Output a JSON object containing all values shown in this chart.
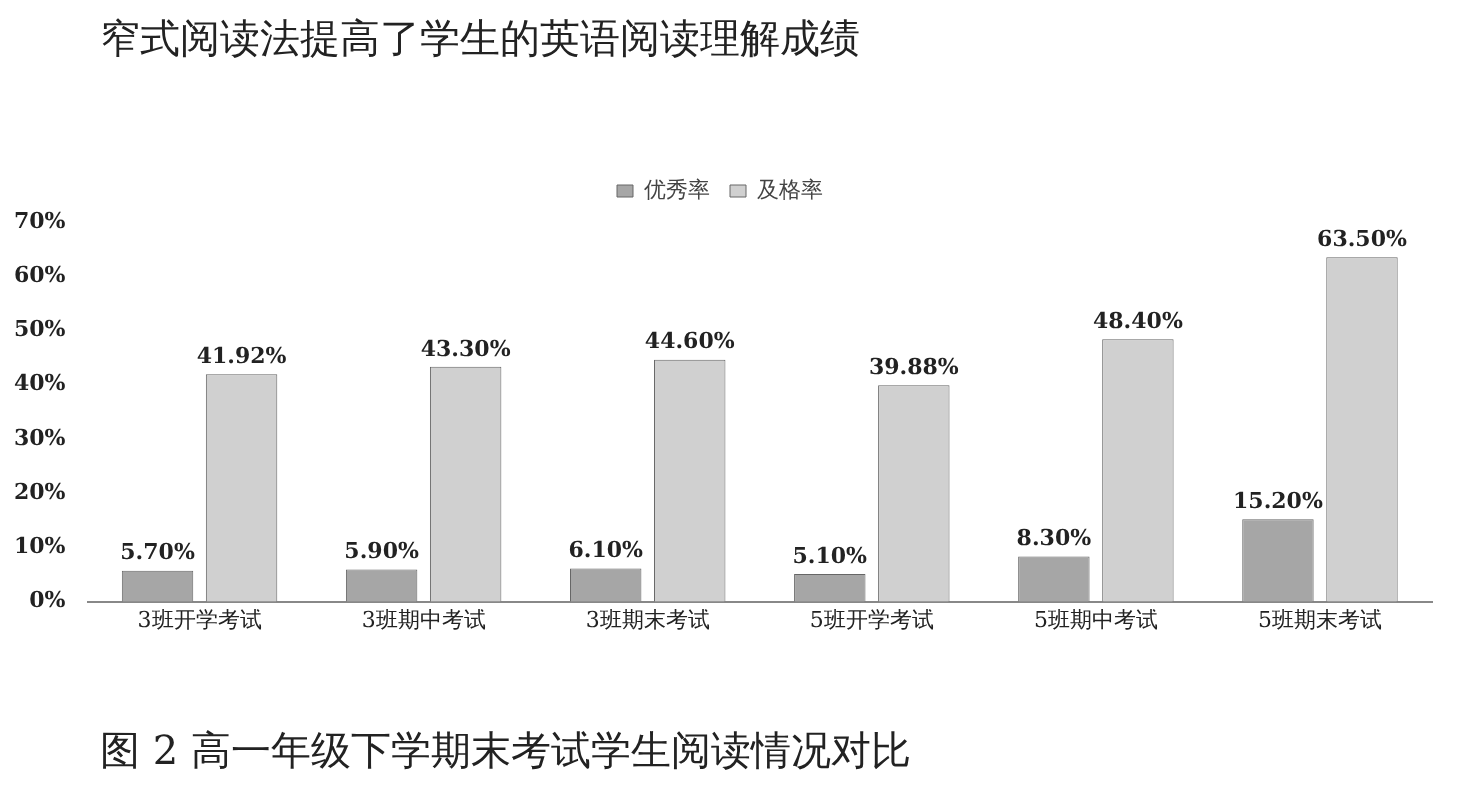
{
  "chart_data": {
    "type": "bar",
    "title": "窄式阅读法提高了学生的英语阅读理解成绩",
    "annotations": [
      "图 2 高一年级下学期末考试学生阅读情况对比"
    ],
    "categories": [
      "3班开学考试",
      "3班期中考试",
      "3班期末考试",
      "5班开学考试",
      "5班期中考试",
      "5班期末考试"
    ],
    "series": [
      {
        "name": "优秀率",
        "color": "#a6a6a6",
        "values": [
          5.7,
          5.9,
          6.1,
          5.1,
          8.3,
          15.2
        ],
        "value_labels": [
          "5.70%",
          "5.90%",
          "6.10%",
          "5.10%",
          "8.30%",
          "15.20%"
        ]
      },
      {
        "name": "及格率",
        "color": "#d0d0d0",
        "values": [
          41.92,
          43.3,
          44.6,
          39.88,
          48.4,
          63.5
        ],
        "value_labels": [
          "41.92%",
          "43.30%",
          "44.60%",
          "39.88%",
          "48.40%",
          "63.50%"
        ]
      }
    ],
    "ylim": [
      0,
      70
    ],
    "yticks": [
      {
        "value": 0,
        "label": "0%"
      },
      {
        "value": 10,
        "label": "10%"
      },
      {
        "value": 20,
        "label": "20%"
      },
      {
        "value": 30,
        "label": "30%"
      },
      {
        "value": 40,
        "label": "40%"
      },
      {
        "value": 50,
        "label": "50%"
      },
      {
        "value": 60,
        "label": "60%"
      },
      {
        "value": 70,
        "label": "70%"
      }
    ],
    "grid": false,
    "legend": "top"
  }
}
